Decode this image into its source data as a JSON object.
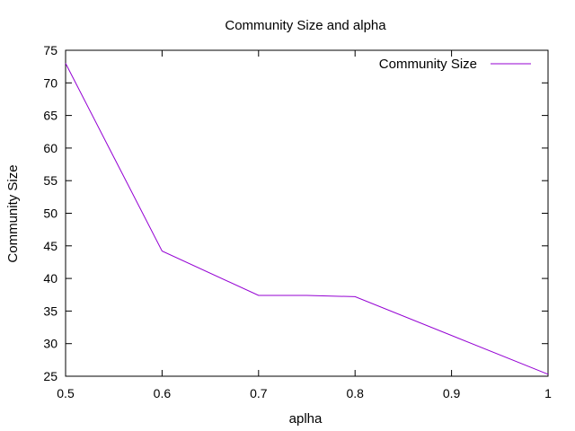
{
  "chart_data": {
    "type": "line",
    "title": "Community Size and alpha",
    "xlabel": "aplha",
    "ylabel": "Community Size",
    "xlim": [
      0.5,
      1.0
    ],
    "ylim": [
      25,
      75
    ],
    "x_ticks": [
      0.5,
      0.6,
      0.7,
      0.8,
      0.9,
      1.0
    ],
    "x_tick_labels": [
      "0.5",
      "0.6",
      "0.7",
      "0.8",
      "0.9",
      "1"
    ],
    "y_ticks": [
      25,
      30,
      35,
      40,
      45,
      50,
      55,
      60,
      65,
      70,
      75
    ],
    "y_tick_labels": [
      "25",
      "30",
      "35",
      "40",
      "45",
      "50",
      "55",
      "60",
      "65",
      "70",
      "75"
    ],
    "grid": false,
    "legend_position": "top-right",
    "series": [
      {
        "name": "Community Size",
        "color": "#9400d3",
        "x": [
          0.5,
          0.6,
          0.7,
          0.75,
          0.8,
          1.0
        ],
        "y": [
          73,
          44.2,
          37.4,
          37.4,
          37.2,
          25.3
        ]
      }
    ]
  }
}
